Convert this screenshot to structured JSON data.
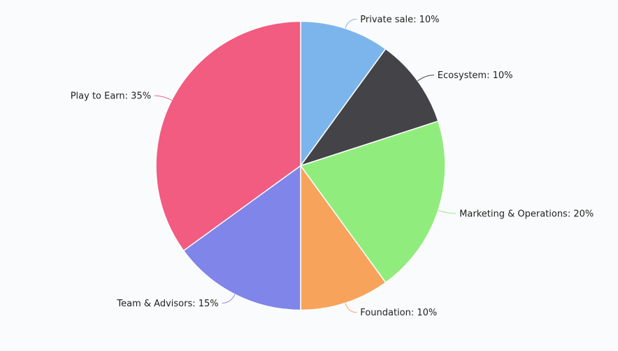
{
  "chart_data": {
    "type": "pie",
    "title": "",
    "start_angle_deg": 0,
    "direction": "clockwise",
    "slices": [
      {
        "label": "Private sale",
        "value": 10,
        "display": "Private sale: 10%",
        "color": "#7cb5ec"
      },
      {
        "label": "Ecosystem",
        "value": 10,
        "display": "Ecosystem: 10%",
        "color": "#434348"
      },
      {
        "label": "Marketing & Operations",
        "value": 20,
        "display": "Marketing & Operations: 20%",
        "color": "#90ed7d"
      },
      {
        "label": "Foundation",
        "value": 10,
        "display": "Foundation: 10%",
        "color": "#f7a35c"
      },
      {
        "label": "Team & Advisors",
        "value": 15,
        "display": "Team & Advisors: 15%",
        "color": "#8085e9"
      },
      {
        "label": "Play to Earn",
        "value": 35,
        "display": "Play to Earn: 35%",
        "color": "#f15c80"
      }
    ]
  }
}
